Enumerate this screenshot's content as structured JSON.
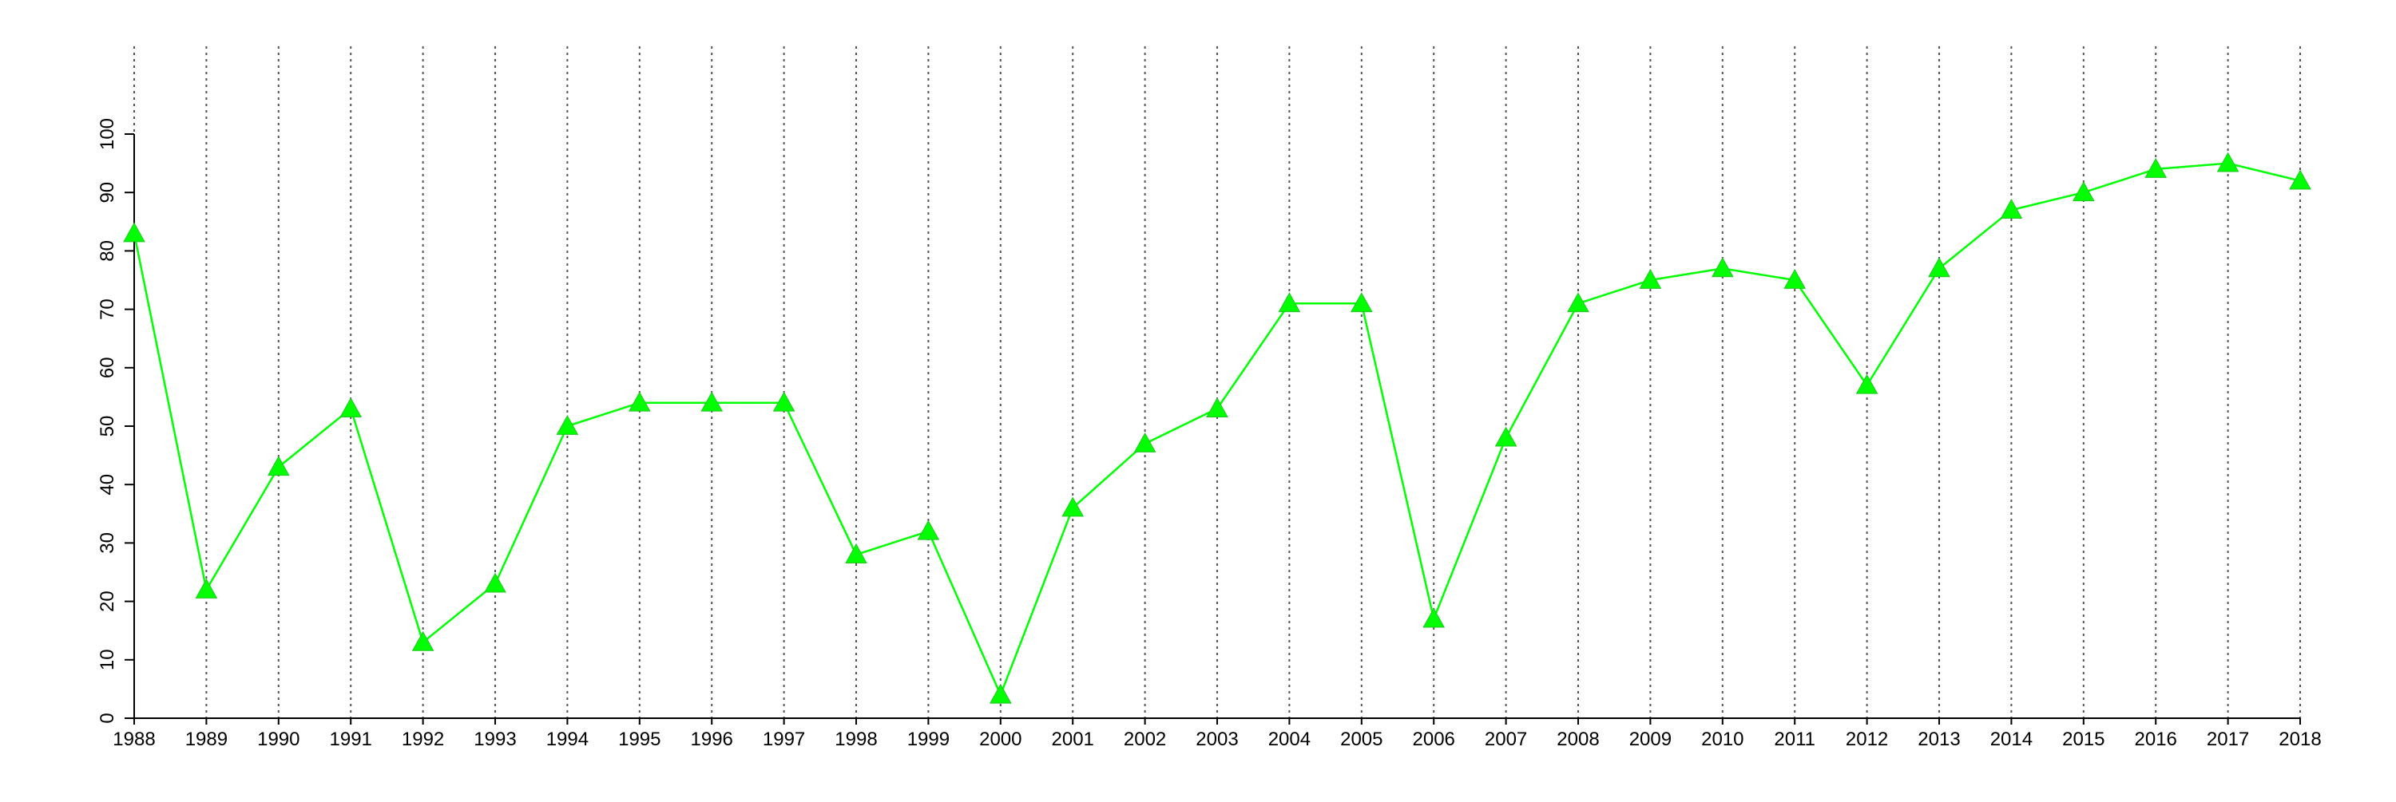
{
  "chart_data": {
    "type": "line",
    "title": "",
    "xlabel": "",
    "ylabel": "",
    "x": [
      1988,
      1989,
      1990,
      1991,
      1992,
      1993,
      1994,
      1995,
      1996,
      1997,
      1998,
      1999,
      2000,
      2001,
      2002,
      2003,
      2004,
      2005,
      2006,
      2007,
      2008,
      2009,
      2010,
      2011,
      2012,
      2013,
      2014,
      2015,
      2016,
      2017,
      2018
    ],
    "series": [
      {
        "values": [
          83,
          22,
          43,
          53,
          13,
          23,
          50,
          54,
          54,
          54,
          28,
          32,
          4,
          36,
          47,
          53,
          71,
          71,
          17,
          48,
          71,
          75,
          77,
          75,
          57,
          77,
          87,
          90,
          94,
          95,
          92
        ],
        "color": "#00ff00",
        "marker": "triangle"
      }
    ],
    "ylim": [
      0,
      100
    ],
    "yticks": [
      0,
      10,
      20,
      30,
      40,
      50,
      60,
      70,
      80,
      90,
      100
    ],
    "xticks": [
      "1988",
      "1989",
      "1990",
      "1991",
      "1992",
      "1993",
      "1994",
      "1995",
      "1996",
      "1997",
      "1998",
      "1999",
      "2000",
      "2001",
      "2002",
      "2003",
      "2004",
      "2005",
      "2006",
      "2007",
      "2008",
      "2009",
      "2010",
      "2011",
      "2012",
      "2013",
      "2014",
      "2015",
      "2016",
      "2017",
      "2018"
    ],
    "grid": {
      "x": true,
      "y": false,
      "style": "dotted",
      "color": "#555555"
    },
    "legend": "none"
  }
}
